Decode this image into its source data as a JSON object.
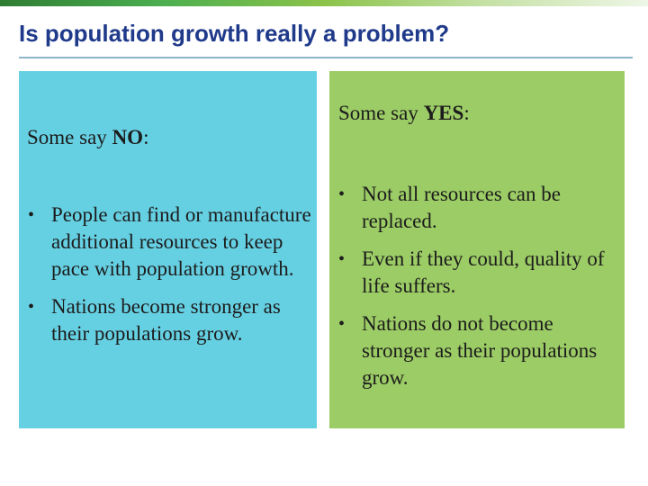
{
  "title": "Is population growth really a problem?",
  "no_column": {
    "heading_prefix": "Some say ",
    "heading_emphasis": "NO",
    "heading_suffix": ":",
    "bullets": [
      "People can find or manufacture additional resources to keep pace with population growth.",
      "Nations become stronger as their populations grow."
    ]
  },
  "yes_column": {
    "heading_prefix": "Some say ",
    "heading_emphasis": "YES",
    "heading_suffix": ":",
    "bullets": [
      "Not all resources can be replaced.",
      "Even if they could, quality of life suffers.",
      "Nations do not become stronger as their populations grow."
    ]
  },
  "colors": {
    "title": "#1f3a8a",
    "no_panel": "#66d0e3",
    "yes_panel": "#9ccc65"
  }
}
